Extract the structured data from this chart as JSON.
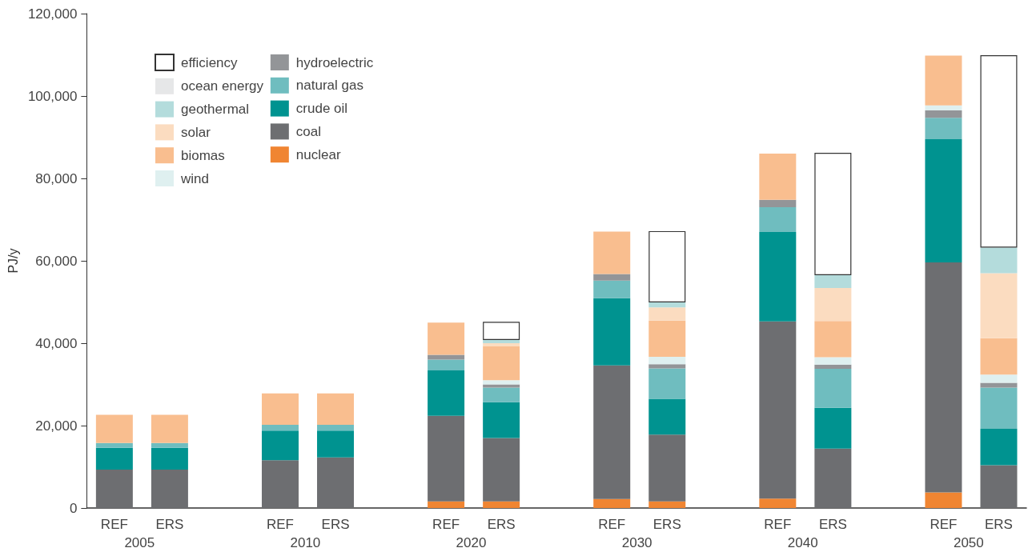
{
  "chart_data": {
    "type": "bar",
    "stacked": true,
    "ylabel": "PJ/y",
    "categories": [
      "REF",
      "ERS",
      null,
      "REF",
      "ERS",
      null,
      "REF",
      "ERS",
      null,
      "REF",
      "ERS",
      null,
      "REF",
      "ERS",
      null,
      "REF",
      "ERS"
    ],
    "annotations": [
      "2005",
      "2010",
      "2020",
      "2030",
      "2040",
      "2050"
    ],
    "series": [
      {
        "name": "nuclear",
        "color": "#f08532",
        "values": [
          null,
          null,
          null,
          null,
          null,
          null,
          1600,
          1600,
          null,
          2200,
          1600,
          null,
          2300,
          null,
          null,
          3800,
          null
        ]
      },
      {
        "name": "coal",
        "color": "#6d6e71",
        "values": [
          9300,
          9300,
          null,
          11600,
          12300,
          null,
          20800,
          15400,
          null,
          32400,
          16200,
          null,
          43000,
          14400,
          null,
          55800,
          10400
        ]
      },
      {
        "name": "crude oil",
        "color": "#009390",
        "values": [
          5300,
          5300,
          null,
          7200,
          6500,
          null,
          11000,
          8700,
          null,
          16300,
          8700,
          null,
          21700,
          9900,
          null,
          29900,
          8800
        ]
      },
      {
        "name": "natural gas",
        "color": "#6fbdbf",
        "values": [
          1200,
          1200,
          null,
          1400,
          1400,
          null,
          2600,
          3500,
          null,
          4300,
          7400,
          null,
          6000,
          9500,
          null,
          5200,
          10000
        ]
      },
      {
        "name": "hydroelectric",
        "color": "#939598",
        "values": [
          null,
          null,
          null,
          null,
          null,
          null,
          1200,
          800,
          null,
          1600,
          1000,
          null,
          1800,
          1000,
          null,
          1800,
          1200
        ]
      },
      {
        "name": "wind",
        "color": "#dff0f0",
        "values": [
          null,
          null,
          null,
          null,
          null,
          null,
          null,
          1000,
          null,
          null,
          1800,
          null,
          null,
          1800,
          null,
          1200,
          2000
        ]
      },
      {
        "name": "biomas",
        "color": "#f9be8f",
        "values": [
          6800,
          6800,
          null,
          7600,
          7600,
          null,
          7800,
          8200,
          null,
          10300,
          8800,
          null,
          11200,
          8800,
          null,
          12100,
          8800
        ]
      },
      {
        "name": "solar",
        "color": "#fbdcc0",
        "values": [
          null,
          null,
          null,
          null,
          null,
          null,
          null,
          800,
          null,
          null,
          3200,
          null,
          null,
          8000,
          null,
          null,
          15800
        ]
      },
      {
        "name": "geothermal",
        "color": "#b4dcdc",
        "values": [
          null,
          null,
          null,
          null,
          null,
          null,
          null,
          800,
          null,
          null,
          1200,
          null,
          null,
          3100,
          null,
          null,
          6200
        ]
      },
      {
        "name": "ocean energy",
        "color": "#e6e7e8",
        "values": [
          null,
          null,
          null,
          null,
          null,
          null,
          null,
          null,
          null,
          null,
          null,
          null,
          null,
          null,
          null,
          null,
          null
        ]
      },
      {
        "name": "efficiency",
        "color": "#ffffff",
        "values": [
          null,
          null,
          null,
          null,
          null,
          null,
          null,
          4400,
          null,
          null,
          17300,
          null,
          null,
          29700,
          null,
          null,
          46700
        ]
      }
    ],
    "ylim": [
      0,
      120000
    ],
    "yticks": [
      0,
      {
        "value": 20000,
        "label": "20,000"
      },
      {
        "value": 40000,
        "label": "40,000"
      },
      {
        "value": 60000,
        "label": "60,000"
      },
      {
        "value": 80000,
        "label": "80,000"
      },
      {
        "value": 100000,
        "label": "100,000"
      },
      {
        "value": 120000,
        "label": "120,000"
      }
    ],
    "grid": false,
    "legend": "top left"
  }
}
